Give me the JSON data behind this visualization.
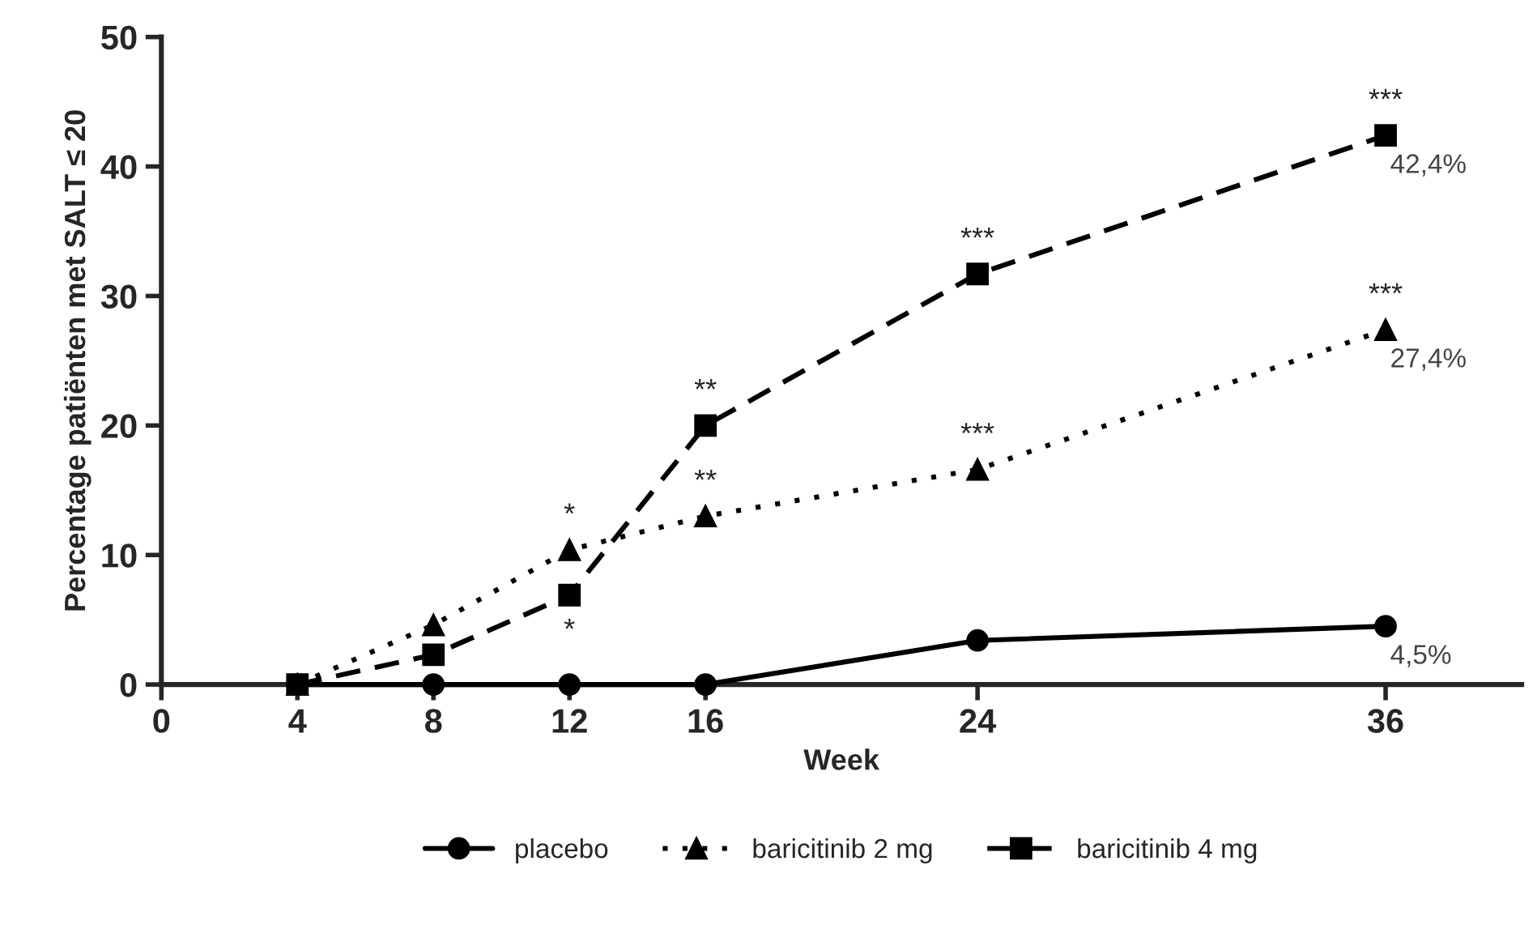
{
  "chart_data": {
    "type": "line",
    "xlabel": "Week",
    "ylabel": "Percentage patiënten met SALT ≤ 20",
    "xlim": [
      0,
      40
    ],
    "xticks": [
      0,
      4,
      8,
      12,
      16,
      24,
      36
    ],
    "ylim": [
      0,
      50
    ],
    "yticks": [
      0,
      10,
      20,
      30,
      40,
      50
    ],
    "grid": false,
    "legend": "bottom",
    "series": [
      {
        "name": "placebo",
        "color": "#000000",
        "marker": "circle",
        "line_style": "solid",
        "x": [
          4,
          8,
          12,
          16,
          24,
          36
        ],
        "values": [
          0,
          0,
          0,
          0,
          3.4,
          4.5
        ],
        "value_labels": [
          null,
          null,
          null,
          null,
          null,
          "4,5%"
        ]
      },
      {
        "name": "baricitinib 2 mg",
        "color": "#000000",
        "marker": "triangle",
        "line_style": "dotted",
        "x": [
          4,
          8,
          12,
          16,
          24,
          36
        ],
        "values": [
          0,
          4.6,
          10.4,
          13,
          16.6,
          27.4
        ],
        "value_labels": [
          null,
          null,
          null,
          null,
          null,
          "27,4%"
        ]
      },
      {
        "name": "baricitinib 4 mg",
        "color": "#000000",
        "marker": "square",
        "line_style": "dashed",
        "x": [
          4,
          8,
          12,
          16,
          24,
          36
        ],
        "values": [
          0,
          2.3,
          6.9,
          20,
          31.7,
          42.4
        ],
        "value_labels": [
          null,
          null,
          null,
          null,
          null,
          "42,4%"
        ]
      }
    ],
    "annotations": [
      {
        "text": "*",
        "x": 12,
        "y": 10.4
      },
      {
        "text": "*",
        "x": 12,
        "y": 6.9
      },
      {
        "text": "**",
        "x": 16,
        "y": 20
      },
      {
        "text": "**",
        "x": 16,
        "y": 13
      },
      {
        "text": "***",
        "x": 24,
        "y": 31.7
      },
      {
        "text": "***",
        "x": 24,
        "y": 16.6
      },
      {
        "text": "***",
        "x": 36,
        "y": 42.4
      },
      {
        "text": "***",
        "x": 36,
        "y": 27.4
      }
    ]
  }
}
